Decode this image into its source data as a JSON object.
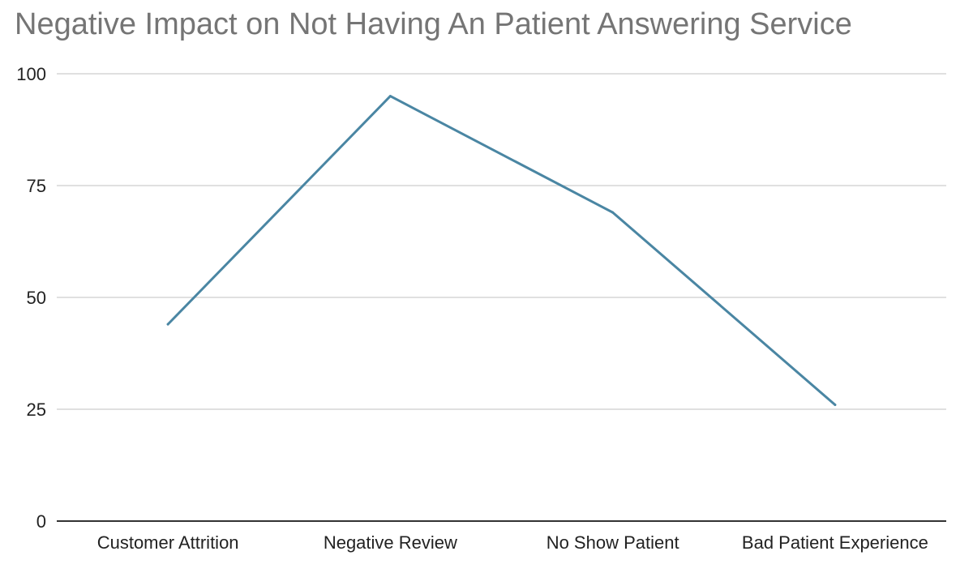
{
  "chart_data": {
    "type": "line",
    "title": "Negative Impact on Not Having An Patient Answering Service",
    "xlabel": "",
    "ylabel": "",
    "categories": [
      "Customer Attrition",
      "Negative Review",
      "No Show Patient",
      "Bad Patient Experience"
    ],
    "series": [
      {
        "values": [
          44,
          95,
          69,
          26
        ],
        "color": "#4a86a3"
      }
    ],
    "ylim": [
      0,
      100
    ],
    "yticks": [
      "0",
      "25",
      "50",
      "75",
      "100"
    ],
    "grid": true,
    "legend": "none"
  }
}
